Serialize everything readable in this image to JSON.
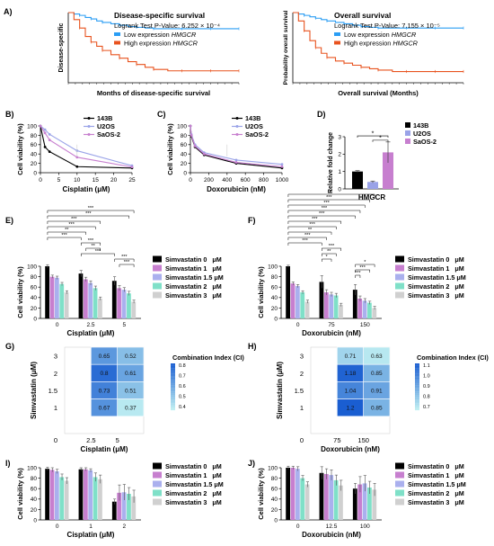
{
  "panel_labels": [
    "A)",
    "B)",
    "C)",
    "D)",
    "E)",
    "F)",
    "G)",
    "H)",
    "I)",
    "J)"
  ],
  "colors": {
    "low": "#2a9df4",
    "high": "#e8531f",
    "c143B": "#000000",
    "cU2OS": "#9aa3e8",
    "cSaOS2": "#c77fcf",
    "simva0": "#000000",
    "simva1": "#c77fcf",
    "simva15": "#aab0ee",
    "simva2": "#7fe0c8",
    "simva3": "#d0d0d0",
    "heat_low": "#bfeff2",
    "heat_high": "#1a5ed1"
  },
  "chart_data": [
    {
      "id": "A1",
      "type": "line",
      "title": "Disease-specific survival",
      "subtitle_prefix": "Logrank Test P-Value: ",
      "subtitle_value": "6.252 × 10⁻⁴",
      "xlabel": "Months of disease-specific survival",
      "ylabel": "Disease-specific",
      "series": [
        {
          "name": "Low expression HMGCR",
          "x": [
            0,
            4,
            8,
            12,
            16,
            20,
            24,
            30,
            36,
            42,
            48,
            54,
            60,
            70,
            80,
            90,
            100,
            110,
            120
          ],
          "y": [
            1,
            0.98,
            0.96,
            0.93,
            0.91,
            0.88,
            0.86,
            0.84,
            0.82,
            0.8,
            0.79,
            0.78,
            0.77,
            0.77,
            0.77,
            0.77,
            0.77,
            0.77,
            0.77
          ]
        },
        {
          "name": "High expression HMGCR",
          "x": [
            0,
            4,
            8,
            12,
            16,
            20,
            24,
            30,
            36,
            42,
            48,
            54,
            60,
            70,
            80,
            90,
            100,
            110,
            120
          ],
          "y": [
            1,
            0.9,
            0.78,
            0.66,
            0.58,
            0.52,
            0.46,
            0.4,
            0.35,
            0.3,
            0.26,
            0.22,
            0.19,
            0.17,
            0.17,
            0.17,
            0.17,
            0.17,
            0.17
          ]
        }
      ]
    },
    {
      "id": "A2",
      "type": "line",
      "title": "Overall survival",
      "subtitle_prefix": "Logrank Test P-Value: ",
      "subtitle_value": "7.155 × 10⁻⁵",
      "xlabel": "Overall survival (Months)",
      "ylabel": "Probability overall survival",
      "series": [
        {
          "name": "Low expression HMGCR",
          "x": [
            0,
            4,
            8,
            12,
            16,
            20,
            24,
            30,
            36,
            42,
            48,
            54,
            60,
            70,
            80,
            90,
            100,
            110,
            120
          ],
          "y": [
            1,
            0.98,
            0.96,
            0.94,
            0.92,
            0.9,
            0.88,
            0.86,
            0.84,
            0.82,
            0.8,
            0.79,
            0.78,
            0.78,
            0.78,
            0.78,
            0.78,
            0.78,
            0.78
          ]
        },
        {
          "name": "High expression HMGCR",
          "x": [
            0,
            4,
            8,
            12,
            16,
            20,
            24,
            30,
            36,
            42,
            48,
            54,
            60,
            70,
            80,
            90,
            100,
            110,
            120
          ],
          "y": [
            1,
            0.88,
            0.74,
            0.6,
            0.5,
            0.42,
            0.36,
            0.31,
            0.28,
            0.25,
            0.22,
            0.2,
            0.18,
            0.16,
            0.16,
            0.16,
            0.16,
            0.16,
            0.16
          ]
        }
      ]
    },
    {
      "id": "B",
      "type": "line",
      "xlabel": "Cisplatin (μM)",
      "ylabel": "Cell viability (%)",
      "xlim": [
        0,
        25
      ],
      "ylim": [
        0,
        100
      ],
      "xticks": [
        0,
        5,
        10,
        15,
        20,
        25
      ],
      "yticks": [
        0,
        20,
        40,
        60,
        80,
        100
      ],
      "series": [
        {
          "name": "143B",
          "x": [
            0,
            1.25,
            2.5,
            10,
            25
          ],
          "y": [
            100,
            55,
            45,
            13,
            10
          ]
        },
        {
          "name": "U2OS",
          "x": [
            0,
            1.25,
            2.5,
            10,
            25
          ],
          "y": [
            100,
            92,
            82,
            47,
            15
          ]
        },
        {
          "name": "SaOS-2",
          "x": [
            0,
            1.25,
            2.5,
            10,
            25
          ],
          "y": [
            100,
            85,
            70,
            33,
            12
          ]
        }
      ]
    },
    {
      "id": "C",
      "type": "line",
      "xlabel": "Doxorubicin (nM)",
      "ylabel": "Cell viability (%)",
      "xlim": [
        0,
        1000
      ],
      "ylim": [
        0,
        100
      ],
      "xticks": [
        0,
        200,
        400,
        600,
        800,
        1000
      ],
      "yticks": [
        0,
        20,
        40,
        60,
        80,
        100
      ],
      "series": [
        {
          "name": "143B",
          "x": [
            0,
            10,
            50,
            150,
            500,
            1000
          ],
          "y": [
            100,
            78,
            55,
            38,
            20,
            10
          ]
        },
        {
          "name": "U2OS",
          "x": [
            0,
            10,
            50,
            150,
            500,
            1000
          ],
          "y": [
            100,
            82,
            60,
            43,
            27,
            18
          ]
        },
        {
          "name": "SaOS-2",
          "x": [
            0,
            10,
            50,
            150,
            500,
            1000
          ],
          "y": [
            100,
            80,
            57,
            40,
            22,
            13
          ]
        }
      ]
    },
    {
      "id": "D",
      "type": "bar",
      "xlabel": "HMGCR",
      "ylabel": "Relative fold change",
      "ylim": [
        0,
        3
      ],
      "yticks": [
        0,
        1,
        2,
        3
      ],
      "significance": [
        "*",
        "*"
      ],
      "series": [
        {
          "name": "143B",
          "values": [
            1.0
          ],
          "err": [
            0.05
          ]
        },
        {
          "name": "U2OS",
          "values": [
            0.4
          ],
          "err": [
            0.05
          ]
        },
        {
          "name": "SaOS-2",
          "values": [
            2.1
          ],
          "err": [
            0.6
          ]
        }
      ]
    },
    {
      "id": "E",
      "type": "bar",
      "xlabel": "Cisplatin (μM)",
      "ylabel": "Cell viability (%)",
      "categories": [
        "0",
        "2.5",
        "5"
      ],
      "ylim": [
        0,
        100
      ],
      "yticks": [
        0,
        20,
        40,
        60,
        80,
        100
      ],
      "significance": [
        "***",
        "***",
        "***",
        "***",
        "**",
        "***",
        "***",
        "**",
        "***",
        "***",
        "***"
      ],
      "series": [
        {
          "name": "Simvastatin 0   μM",
          "values": [
            100,
            86,
            72
          ],
          "err": [
            3,
            6,
            8
          ]
        },
        {
          "name": "Simvastatin 1   μM",
          "values": [
            80,
            75,
            58
          ],
          "err": [
            3,
            4,
            5
          ]
        },
        {
          "name": "Simvastatin 1.5 μM",
          "values": [
            78,
            68,
            55
          ],
          "err": [
            3,
            4,
            4
          ]
        },
        {
          "name": "Simvastatin 2   μM",
          "values": [
            66,
            58,
            48
          ],
          "err": [
            3,
            4,
            4
          ]
        },
        {
          "name": "Simvastatin 3   μM",
          "values": [
            50,
            38,
            32
          ],
          "err": [
            3,
            3,
            3
          ]
        }
      ]
    },
    {
      "id": "F",
      "type": "bar",
      "xlabel": "Doxorubicin (nM)",
      "ylabel": "Cell viability (%)",
      "categories": [
        "0",
        "75",
        "150"
      ],
      "ylim": [
        0,
        100
      ],
      "yticks": [
        0,
        20,
        40,
        60,
        80,
        100
      ],
      "significance": [
        "*",
        "***",
        "***",
        "***",
        "***",
        "***",
        "***",
        "**",
        "***",
        "***",
        "***",
        "**",
        "*",
        "*",
        "***",
        "***"
      ],
      "series": [
        {
          "name": "Simvastatin 0   μM",
          "values": [
            100,
            70,
            55
          ],
          "err": [
            2,
            12,
            10
          ]
        },
        {
          "name": "Simvastatin 1   μM",
          "values": [
            67,
            50,
            38
          ],
          "err": [
            3,
            5,
            5
          ]
        },
        {
          "name": "Simvastatin 1.5 μM",
          "values": [
            62,
            46,
            34
          ],
          "err": [
            3,
            4,
            4
          ]
        },
        {
          "name": "Simvastatin 2   μM",
          "values": [
            50,
            44,
            30
          ],
          "err": [
            3,
            4,
            3
          ]
        },
        {
          "name": "Simvastatin 3   μM",
          "values": [
            32,
            26,
            20
          ],
          "err": [
            3,
            3,
            3
          ]
        }
      ]
    },
    {
      "id": "G",
      "type": "heatmap",
      "xlabel": "Cisplatin (μM)",
      "ylabel": "Simvastatin (μM)",
      "legend_title": "Combination Index (CI)",
      "x_categories": [
        "0",
        "2.5",
        "5"
      ],
      "y_categories": [
        "3",
        "2",
        "1.5",
        "1",
        "0"
      ],
      "legend_ticks": [
        "0.8",
        "0.7",
        "0.6",
        "0.5",
        "0.4"
      ],
      "vmin": 0.35,
      "vmax": 0.85,
      "cells": [
        {
          "x": "2.5",
          "y": "3",
          "v": 0.65
        },
        {
          "x": "5",
          "y": "3",
          "v": 0.52
        },
        {
          "x": "2.5",
          "y": "2",
          "v": 0.8
        },
        {
          "x": "5",
          "y": "2",
          "v": 0.61
        },
        {
          "x": "2.5",
          "y": "1.5",
          "v": 0.73
        },
        {
          "x": "5",
          "y": "1.5",
          "v": 0.51
        },
        {
          "x": "2.5",
          "y": "1",
          "v": 0.67
        },
        {
          "x": "5",
          "y": "1",
          "v": 0.37
        }
      ]
    },
    {
      "id": "H",
      "type": "heatmap",
      "xlabel": "Doxorubicin (nM)",
      "ylabel": "Simvastatin (μM)",
      "legend_title": "Combination Index (CI)",
      "x_categories": [
        "0",
        "75",
        "150"
      ],
      "y_categories": [
        "3",
        "2",
        "1.5",
        "1",
        "0"
      ],
      "legend_ticks": [
        "1.1",
        "1.0",
        "0.9",
        "0.8",
        "0.7"
      ],
      "vmin": 0.6,
      "vmax": 1.2,
      "cells": [
        {
          "x": "75",
          "y": "3",
          "v": 0.71
        },
        {
          "x": "150",
          "y": "3",
          "v": 0.63
        },
        {
          "x": "75",
          "y": "2",
          "v": 1.18
        },
        {
          "x": "150",
          "y": "2",
          "v": 0.85
        },
        {
          "x": "75",
          "y": "1.5",
          "v": 1.04
        },
        {
          "x": "150",
          "y": "1.5",
          "v": 0.91
        },
        {
          "x": "75",
          "y": "1",
          "v": 1.2
        },
        {
          "x": "150",
          "y": "1",
          "v": 0.85
        }
      ]
    },
    {
      "id": "I",
      "type": "bar",
      "xlabel": "Cisplatin (μM)",
      "ylabel": "Cell viability (%)",
      "categories": [
        "0",
        "1",
        "2"
      ],
      "ylim": [
        0,
        100
      ],
      "yticks": [
        0,
        20,
        40,
        60,
        80,
        100
      ],
      "series": [
        {
          "name": "Simvastatin 0   μM",
          "values": [
            98,
            97,
            35
          ],
          "err": [
            3,
            3,
            5
          ]
        },
        {
          "name": "Simvastatin 1   μM",
          "values": [
            96,
            97,
            52
          ],
          "err": [
            4,
            3,
            15
          ]
        },
        {
          "name": "Simvastatin 1.5 μM",
          "values": [
            93,
            95,
            53
          ],
          "err": [
            4,
            3,
            15
          ]
        },
        {
          "name": "Simvastatin 2   μM",
          "values": [
            82,
            82,
            50
          ],
          "err": [
            6,
            8,
            12
          ]
        },
        {
          "name": "Simvastatin 3   μM",
          "values": [
            75,
            78,
            45
          ],
          "err": [
            6,
            8,
            12
          ]
        }
      ]
    },
    {
      "id": "J",
      "type": "bar",
      "xlabel": "Doxorubicin (nM)",
      "ylabel": "Cell viability (%)",
      "categories": [
        "0",
        "12.5",
        "100"
      ],
      "ylim": [
        0,
        100
      ],
      "yticks": [
        0,
        20,
        40,
        60,
        80,
        100
      ],
      "series": [
        {
          "name": "Simvastatin 0   μM",
          "values": [
            100,
            90,
            60
          ],
          "err": [
            3,
            12,
            10
          ]
        },
        {
          "name": "Simvastatin 1   μM",
          "values": [
            100,
            88,
            68
          ],
          "err": [
            3,
            10,
            15
          ]
        },
        {
          "name": "Simvastatin 1.5 μM",
          "values": [
            98,
            86,
            70
          ],
          "err": [
            4,
            10,
            15
          ]
        },
        {
          "name": "Simvastatin 2   μM",
          "values": [
            80,
            76,
            62
          ],
          "err": [
            5,
            10,
            12
          ]
        },
        {
          "name": "Simvastatin 3   μM",
          "values": [
            68,
            66,
            58
          ],
          "err": [
            5,
            10,
            12
          ]
        }
      ]
    }
  ]
}
